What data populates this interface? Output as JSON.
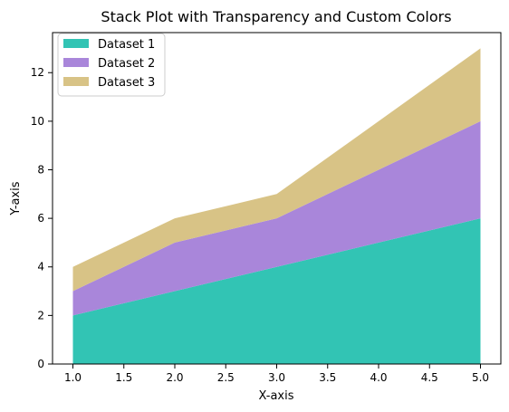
{
  "chart_data": {
    "type": "area",
    "stacked": true,
    "title": "Stack Plot with Transparency and Custom Colors",
    "xlabel": "X-axis",
    "ylabel": "Y-axis",
    "x": [
      1,
      2,
      3,
      4,
      5
    ],
    "series": [
      {
        "name": "Dataset 1",
        "values": [
          2,
          3,
          4,
          5,
          6
        ],
        "color": "#32c4b4"
      },
      {
        "name": "Dataset 2",
        "values": [
          1,
          2,
          2,
          3,
          4
        ],
        "color": "#a986da"
      },
      {
        "name": "Dataset 3",
        "values": [
          1,
          1,
          1,
          2,
          3
        ],
        "color": "#d8c386"
      }
    ],
    "xlim": [
      0.8,
      5.2
    ],
    "ylim": [
      0,
      13.65
    ],
    "xticks": [
      1.0,
      1.5,
      2.0,
      2.5,
      3.0,
      3.5,
      4.0,
      4.5,
      5.0
    ],
    "xtick_labels": [
      "1.0",
      "1.5",
      "2.0",
      "2.5",
      "3.0",
      "3.5",
      "4.0",
      "4.5",
      "5.0"
    ],
    "yticks": [
      0,
      2,
      4,
      6,
      8,
      10,
      12
    ],
    "ytick_labels": [
      "0",
      "2",
      "4",
      "6",
      "8",
      "10",
      "12"
    ],
    "grid": false,
    "legend_position": "upper-left"
  }
}
